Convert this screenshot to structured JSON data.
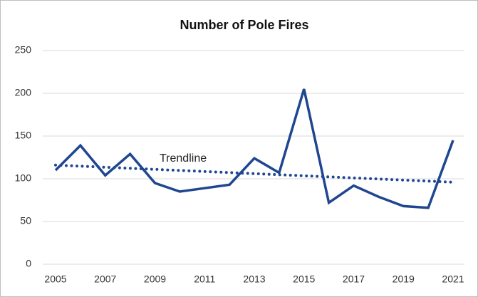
{
  "chart_data": {
    "type": "line",
    "title": "Number of Pole Fires",
    "x": [
      2005,
      2006,
      2007,
      2008,
      2009,
      2010,
      2011,
      2012,
      2013,
      2014,
      2015,
      2016,
      2017,
      2018,
      2019,
      2020,
      2021
    ],
    "values": [
      110,
      139,
      104,
      129,
      95,
      85,
      89,
      93,
      124,
      107,
      205,
      72,
      92,
      79,
      68,
      66,
      145
    ],
    "color": "#1f4690",
    "trendline": {
      "label": "Trendline",
      "x": [
        2005,
        2021
      ],
      "values": [
        116,
        96
      ],
      "color": "#1f4690"
    },
    "xlim": [
      2005,
      2021
    ],
    "xticks": [
      2005,
      2007,
      2009,
      2011,
      2013,
      2015,
      2017,
      2019,
      2021
    ],
    "ylim": [
      0,
      250
    ],
    "yticks": [
      0,
      50,
      100,
      150,
      200,
      250
    ],
    "grid": true
  }
}
